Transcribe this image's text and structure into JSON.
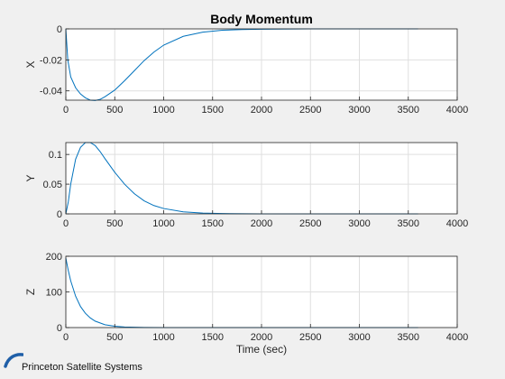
{
  "figure": {
    "title": "Body Momentum",
    "brand": {
      "name": "Princeton Satellite Systems",
      "logo_color": "#1f5fa8"
    },
    "line_color": "#0072bd"
  },
  "chart_data": [
    {
      "type": "line",
      "title": "Body Momentum",
      "xlabel": "",
      "ylabel": "X",
      "xlim": [
        0,
        4000
      ],
      "ylim": [
        -0.046,
        0
      ],
      "xticks": [
        0,
        500,
        1000,
        1500,
        2000,
        2500,
        3000,
        3500,
        4000
      ],
      "yticks": [
        -0.04,
        -0.02,
        0
      ],
      "ytick_labels": [
        "-0.04",
        "-0.02",
        "0"
      ],
      "grid": true,
      "series": [
        {
          "x": [
            0,
            20,
            50,
            100,
            150,
            200,
            250,
            300,
            350,
            400,
            500,
            600,
            700,
            800,
            900,
            1000,
            1200,
            1400,
            1600,
            1800,
            2000,
            2500,
            3000,
            3600
          ],
          "y": [
            0,
            -0.02,
            -0.031,
            -0.038,
            -0.042,
            -0.0445,
            -0.046,
            -0.0462,
            -0.0455,
            -0.0438,
            -0.0395,
            -0.0335,
            -0.027,
            -0.0205,
            -0.015,
            -0.0105,
            -0.0048,
            -0.0021,
            -0.0009,
            -0.0004,
            -0.0002,
            0,
            0,
            0
          ]
        }
      ]
    },
    {
      "type": "line",
      "title": "",
      "xlabel": "",
      "ylabel": "Y",
      "xlim": [
        0,
        4000
      ],
      "ylim": [
        0,
        0.12
      ],
      "xticks": [
        0,
        500,
        1000,
        1500,
        2000,
        2500,
        3000,
        3500,
        4000
      ],
      "yticks": [
        0,
        0.05,
        0.1
      ],
      "ytick_labels": [
        "0",
        "0.05",
        "0.1"
      ],
      "grid": true,
      "series": [
        {
          "x": [
            0,
            25,
            50,
            100,
            150,
            200,
            250,
            300,
            350,
            400,
            500,
            600,
            700,
            800,
            900,
            1000,
            1200,
            1400,
            1600,
            2000,
            2500,
            3000,
            3600
          ],
          "y": [
            0,
            0.02,
            0.05,
            0.092,
            0.112,
            0.12,
            0.12,
            0.115,
            0.105,
            0.093,
            0.07,
            0.05,
            0.034,
            0.022,
            0.014,
            0.009,
            0.0035,
            0.0014,
            0.0005,
            0,
            0,
            0,
            0
          ]
        }
      ]
    },
    {
      "type": "line",
      "title": "",
      "xlabel": "Time (sec)",
      "ylabel": "Z",
      "xlim": [
        0,
        4000
      ],
      "ylim": [
        0,
        200
      ],
      "xticks": [
        0,
        500,
        1000,
        1500,
        2000,
        2500,
        3000,
        3500,
        4000
      ],
      "yticks": [
        0,
        100,
        200
      ],
      "ytick_labels": [
        "0",
        "100",
        "200"
      ],
      "grid": true,
      "series": [
        {
          "x": [
            0,
            25,
            50,
            100,
            150,
            200,
            250,
            300,
            400,
            500,
            600,
            700,
            800,
            1000,
            1200,
            1500,
            2000,
            2500,
            3000,
            3600
          ],
          "y": [
            195,
            160,
            131,
            88,
            59,
            40,
            27,
            18,
            8,
            3.7,
            1.7,
            0.8,
            0.4,
            0.1,
            0,
            0,
            0,
            0,
            0,
            0
          ]
        }
      ]
    }
  ]
}
